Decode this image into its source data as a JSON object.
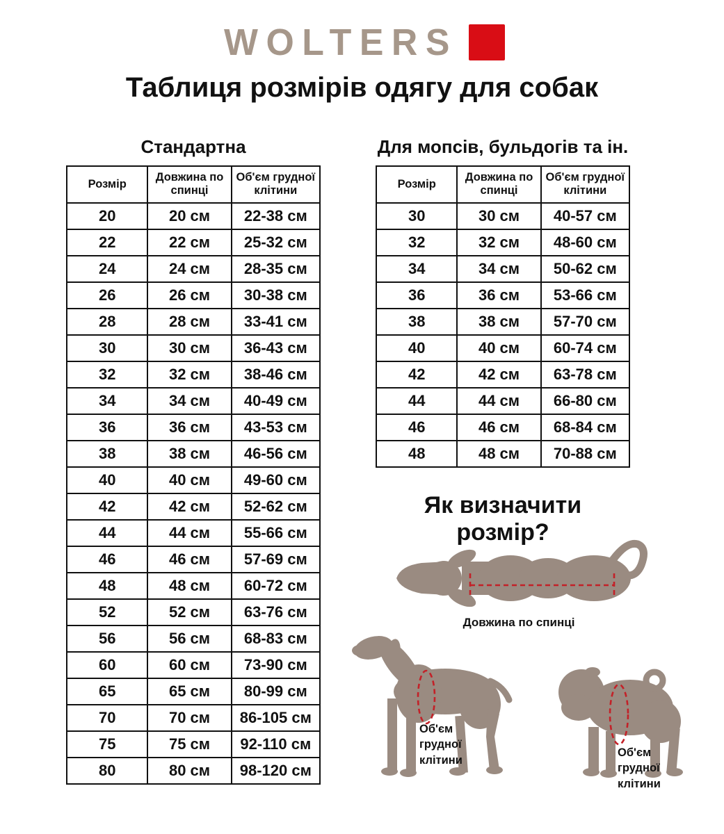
{
  "logo": {
    "text": "WOLTERS"
  },
  "title": "Таблиця розмірів одягу для собак",
  "colors": {
    "brand_red": "#d90d15",
    "logo_taupe": "#a6978a",
    "silhouette": "#9a8b81",
    "accent_red": "#c32128",
    "border": "#111111"
  },
  "tables": [
    {
      "heading": "Стандартна",
      "columns": [
        "Розмір",
        "Довжина по спинці",
        "Об'єм грудної клітини"
      ],
      "rows": [
        [
          "20",
          "20 см",
          "22-38 см"
        ],
        [
          "22",
          "22 см",
          "25-32 см"
        ],
        [
          "24",
          "24 см",
          "28-35 см"
        ],
        [
          "26",
          "26 см",
          "30-38 см"
        ],
        [
          "28",
          "28 см",
          "33-41 см"
        ],
        [
          "30",
          "30 см",
          "36-43 см"
        ],
        [
          "32",
          "32 см",
          "38-46 см"
        ],
        [
          "34",
          "34 см",
          "40-49 см"
        ],
        [
          "36",
          "36 см",
          "43-53 см"
        ],
        [
          "38",
          "38 см",
          "46-56 см"
        ],
        [
          "40",
          "40 см",
          "49-60 см"
        ],
        [
          "42",
          "42 см",
          "52-62 см"
        ],
        [
          "44",
          "44 см",
          "55-66 см"
        ],
        [
          "46",
          "46 см",
          "57-69 см"
        ],
        [
          "48",
          "48 см",
          "60-72 см"
        ],
        [
          "52",
          "52 см",
          "63-76 см"
        ],
        [
          "56",
          "56 см",
          "68-83 см"
        ],
        [
          "60",
          "60 см",
          "73-90 см"
        ],
        [
          "65",
          "65 см",
          "80-99 см"
        ],
        [
          "70",
          "70 см",
          "86-105 см"
        ],
        [
          "75",
          "75 см",
          "92-110 см"
        ],
        [
          "80",
          "80 см",
          "98-120 см"
        ]
      ]
    },
    {
      "heading": "Для мопсів, бульдогів та ін.",
      "columns": [
        "Розмір",
        "Довжина по спинці",
        "Об'єм грудної клітини"
      ],
      "rows": [
        [
          "30",
          "30 см",
          "40-57 см"
        ],
        [
          "32",
          "32 см",
          "48-60 см"
        ],
        [
          "34",
          "34 см",
          "50-62 см"
        ],
        [
          "36",
          "36 см",
          "53-66 см"
        ],
        [
          "38",
          "38 см",
          "57-70 см"
        ],
        [
          "40",
          "40 см",
          "60-74 см"
        ],
        [
          "42",
          "42 см",
          "63-78 см"
        ],
        [
          "44",
          "44 см",
          "66-80 см"
        ],
        [
          "46",
          "46 см",
          "68-84 см"
        ],
        [
          "48",
          "48 см",
          "70-88 см"
        ]
      ]
    }
  ],
  "guide": {
    "heading": "Як визначити розмір?",
    "back_length_label": "Довжина по спинці",
    "chest_label": "Об'єм\nгрудної\nклітини"
  }
}
